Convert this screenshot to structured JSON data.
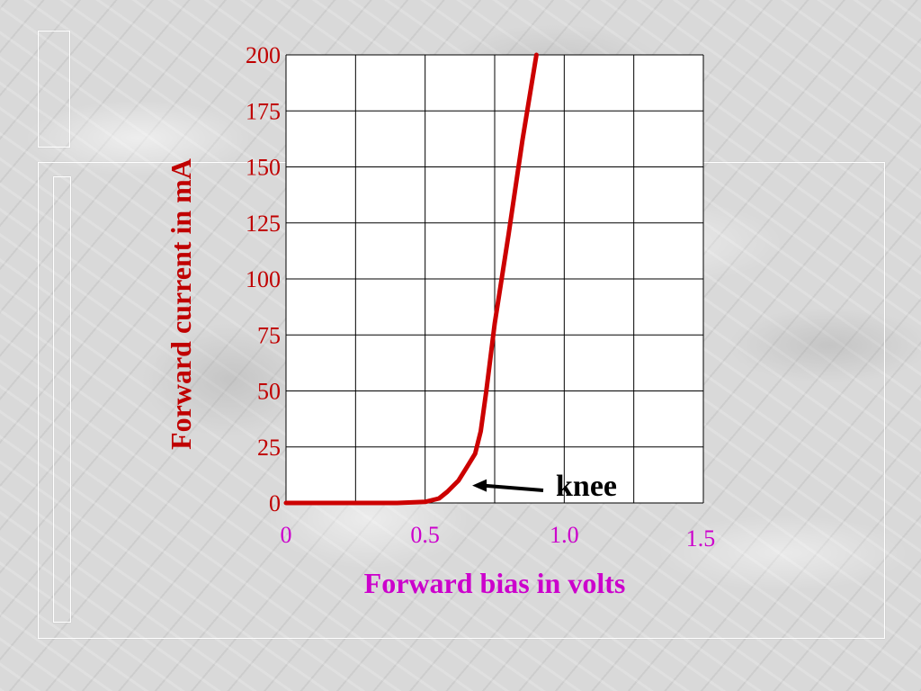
{
  "colors": {
    "curve": "#cc0000",
    "y_text": "#c00000",
    "x_text": "#cc00cc",
    "grid": "#000000",
    "plot_bg": "#ffffff",
    "annotation": "#000000"
  },
  "chart_data": {
    "type": "line",
    "title": "",
    "xlabel": "Forward bias in volts",
    "ylabel": "Forward current in mA",
    "xlim": [
      0,
      1.5
    ],
    "ylim": [
      0,
      200
    ],
    "x_ticks": [
      0,
      0.5,
      1.0,
      1.5
    ],
    "x_tick_labels": [
      "0",
      "0.5",
      "1.0",
      "1.5"
    ],
    "y_ticks": [
      0,
      25,
      50,
      75,
      100,
      125,
      150,
      175,
      200
    ],
    "y_tick_labels": [
      "0",
      "25",
      "50",
      "75",
      "100",
      "125",
      "150",
      "175",
      "200"
    ],
    "grid": true,
    "series": [
      {
        "x": [
          0,
          0.1,
          0.2,
          0.3,
          0.4,
          0.5,
          0.55,
          0.58,
          0.62,
          0.65,
          0.68,
          0.7,
          0.72,
          0.75,
          0.8,
          0.85,
          0.9
        ],
        "y": [
          0,
          0,
          0,
          0,
          0,
          0.5,
          2,
          5,
          10,
          16,
          22,
          32,
          50,
          80,
          120,
          162,
          200
        ]
      }
    ],
    "annotations": [
      {
        "text": "knee",
        "arrow_to": {
          "x": 0.65,
          "y": 7
        }
      }
    ]
  }
}
